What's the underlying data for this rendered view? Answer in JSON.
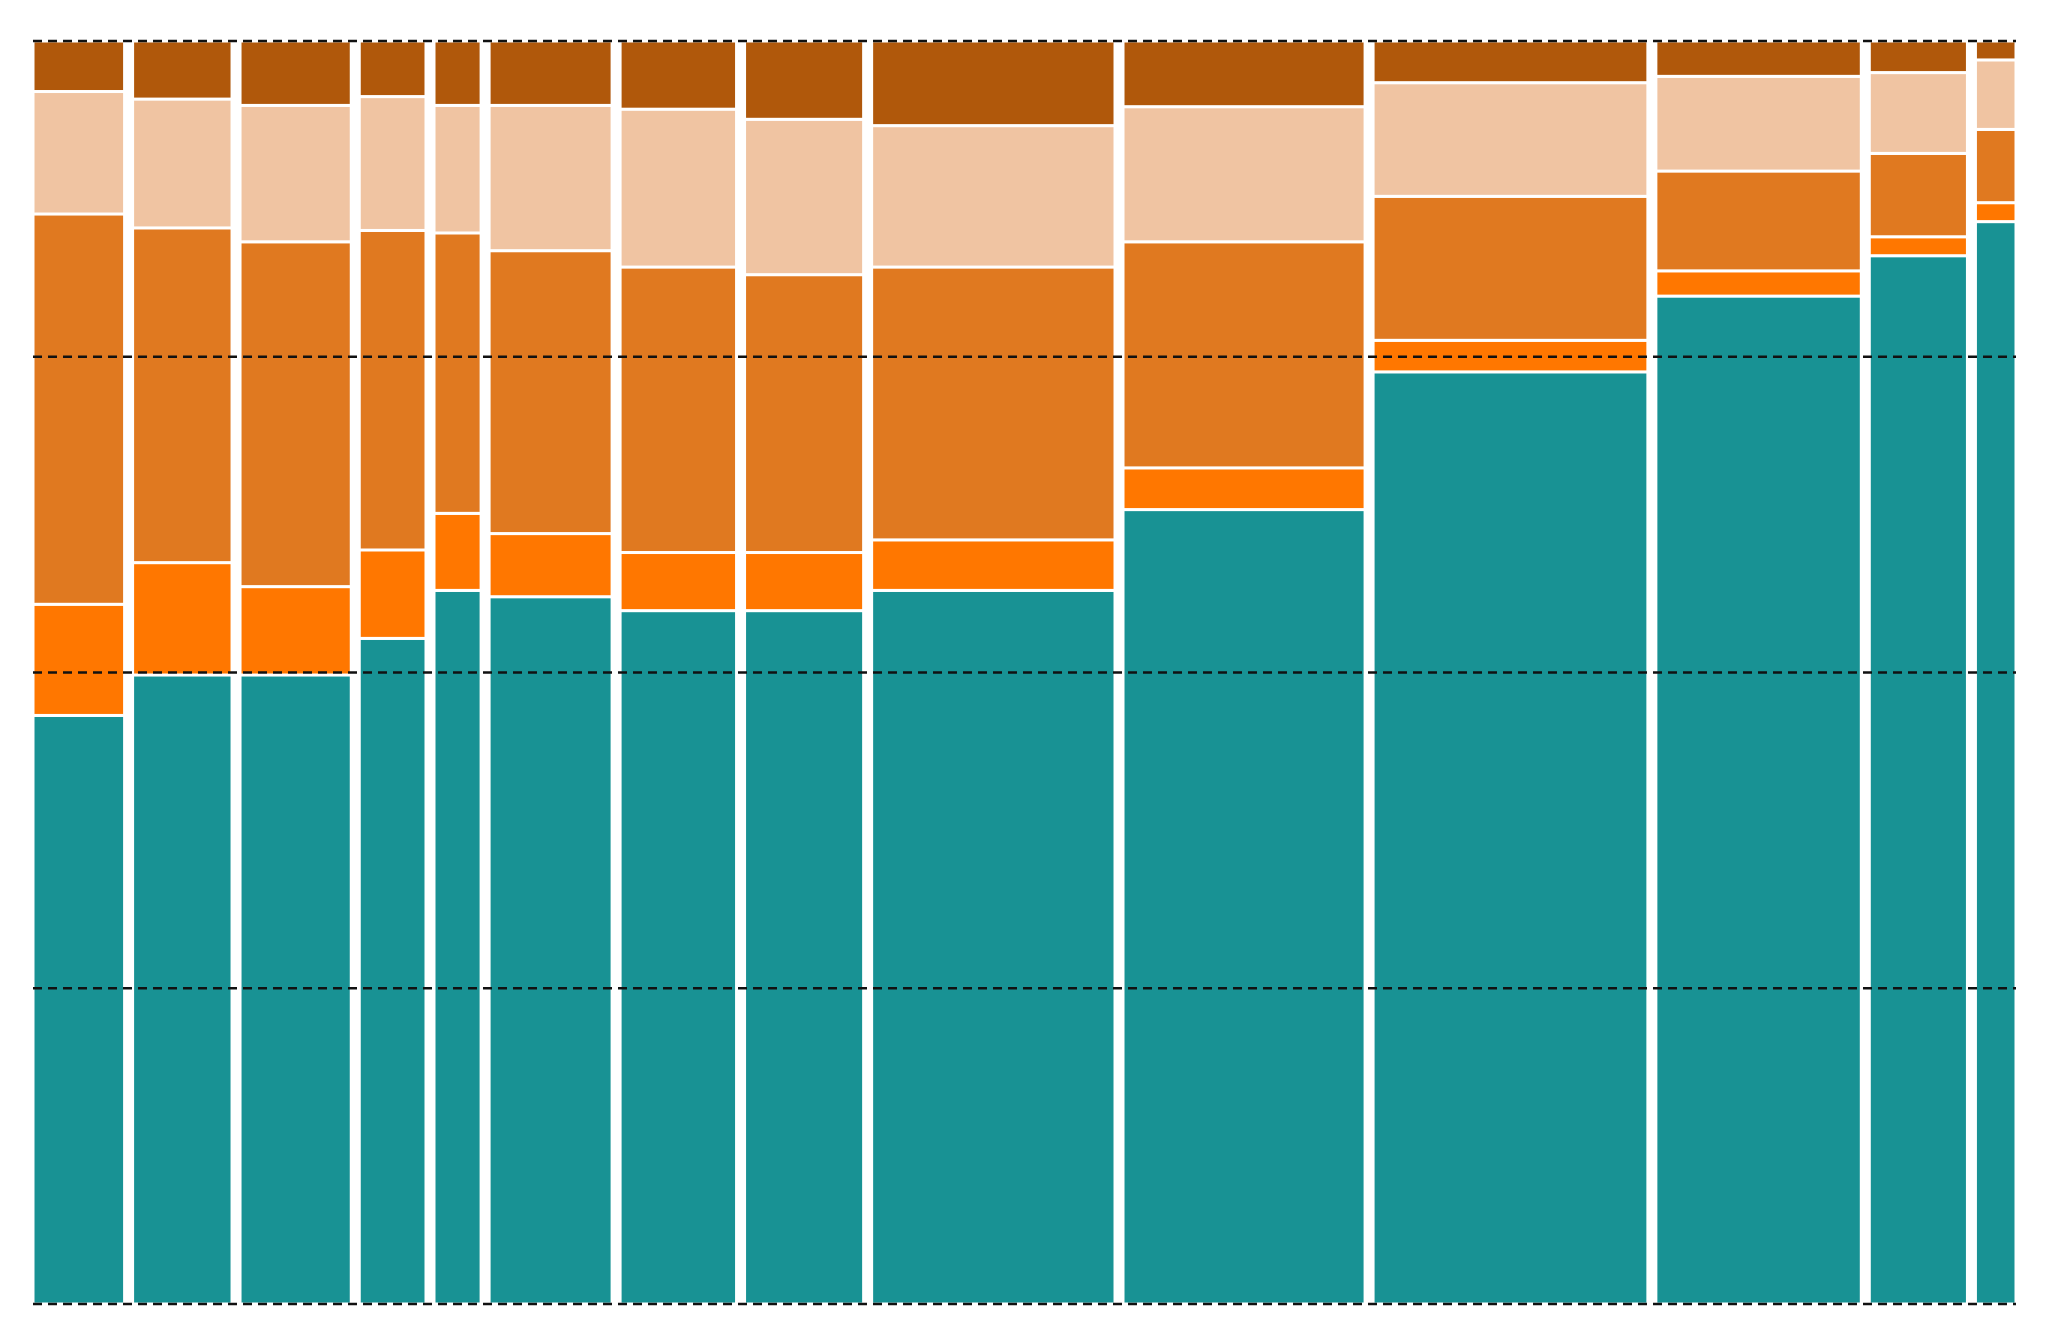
{
  "chart_data": {
    "type": "mekko",
    "widths": [
      70,
      76,
      85,
      51,
      36,
      94,
      89,
      91,
      186,
      185,
      210,
      157,
      75,
      31
    ],
    "series": [
      {
        "color": "#189294",
        "values": [
          46.6,
          49.8,
          49.8,
          52.7,
          56.5,
          56.0,
          54.9,
          54.9,
          56.5,
          62.9,
          73.8,
          79.8,
          83.0,
          85.7
        ]
      },
      {
        "color": "#ff7700",
        "values": [
          8.8,
          8.9,
          7.0,
          7.0,
          6.1,
          5.0,
          4.6,
          4.6,
          4.0,
          3.3,
          2.5,
          2.0,
          1.5,
          1.5
        ]
      },
      {
        "color": "#e07920",
        "values": [
          30.9,
          26.5,
          27.3,
          25.3,
          22.2,
          22.4,
          22.6,
          22.0,
          21.6,
          17.9,
          11.4,
          7.9,
          6.6,
          5.8
        ]
      },
      {
        "color": "#f0c4a2",
        "values": [
          9.7,
          10.2,
          10.8,
          10.6,
          10.1,
          11.5,
          12.5,
          12.3,
          11.2,
          10.7,
          9.0,
          7.5,
          6.4,
          5.5
        ]
      },
      {
        "color": "#b0580b",
        "values": [
          4.0,
          4.6,
          5.1,
          4.4,
          5.1,
          5.1,
          5.4,
          6.2,
          6.7,
          5.2,
          3.3,
          2.8,
          2.5,
          1.5
        ]
      }
    ],
    "ylim": [
      0,
      100
    ],
    "yticks": [
      0,
      25,
      50,
      75,
      100
    ],
    "grid": true
  }
}
